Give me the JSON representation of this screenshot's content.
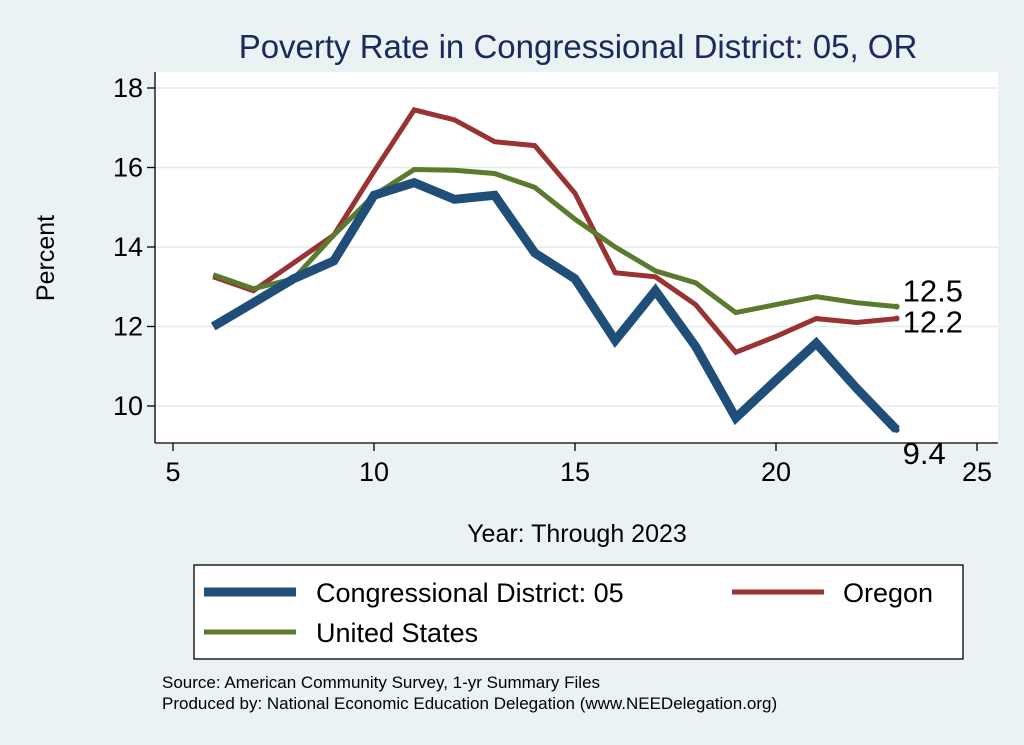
{
  "chart_data": {
    "type": "line",
    "title": "Poverty Rate in Congressional District:  05, OR",
    "xlabel": "Year: Through 2023",
    "ylabel": "Percent",
    "xlim": [
      5,
      25
    ],
    "ylim": [
      9.0,
      18.2
    ],
    "xticks": [
      5,
      10,
      15,
      20,
      25
    ],
    "yticks": [
      10,
      12,
      14,
      16,
      18
    ],
    "grid": true,
    "legend_position": "bottom",
    "series": [
      {
        "name": "Congressional District:  05",
        "color": "#1f4e79",
        "x": [
          6,
          7,
          8,
          9,
          10,
          11,
          12,
          13,
          14,
          15,
          16,
          17,
          18,
          19,
          20,
          21,
          22,
          23
        ],
        "values": [
          12.0,
          12.6,
          13.2,
          13.65,
          15.3,
          15.62,
          15.2,
          15.3,
          13.85,
          13.2,
          11.65,
          12.9,
          11.5,
          9.7,
          10.65,
          11.58,
          10.45,
          9.4
        ],
        "end_label": "9.4"
      },
      {
        "name": "Oregon",
        "color": "#993333",
        "x": [
          6,
          7,
          8,
          9,
          10,
          11,
          12,
          13,
          14,
          15,
          16,
          17,
          18,
          19,
          20,
          21,
          22,
          23
        ],
        "values": [
          13.25,
          12.9,
          13.6,
          14.3,
          15.9,
          17.45,
          17.2,
          16.65,
          16.55,
          15.35,
          13.35,
          13.25,
          12.55,
          11.35,
          11.75,
          12.2,
          12.1,
          12.2
        ],
        "end_label": "12.2"
      },
      {
        "name": "United States",
        "color": "#5a7a2e",
        "x": [
          6,
          7,
          8,
          9,
          10,
          11,
          12,
          13,
          14,
          15,
          16,
          17,
          18,
          19,
          20,
          21,
          22,
          23
        ],
        "values": [
          13.3,
          12.95,
          13.2,
          14.3,
          15.3,
          15.95,
          15.93,
          15.85,
          15.5,
          14.7,
          14.0,
          13.4,
          13.1,
          12.35,
          12.55,
          12.75,
          12.6,
          12.5
        ],
        "end_label": "12.5"
      }
    ]
  },
  "source": {
    "line1": "Source: American Community Survey, 1-yr Summary Files",
    "line2": "Produced by: National Economic Education Delegation (www.NEEDelegation.org)"
  }
}
